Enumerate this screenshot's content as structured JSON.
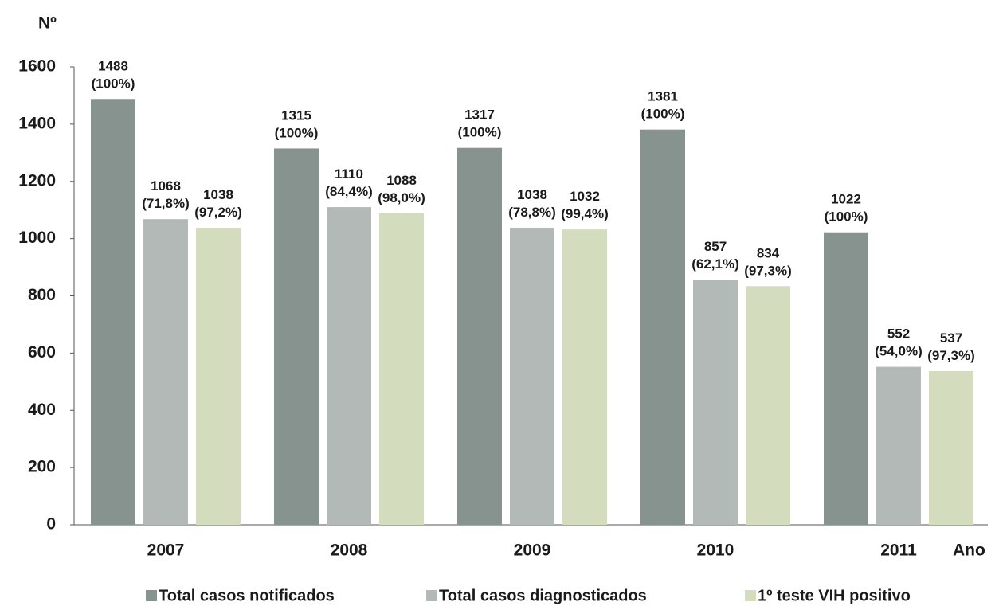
{
  "chart_data": {
    "type": "bar",
    "y_label": "Nº",
    "x_label": "Ano",
    "categories": [
      "2007",
      "2008",
      "2009",
      "2010",
      "2011"
    ],
    "series": [
      {
        "name": "Total casos notificados",
        "color": "#87938f",
        "values": [
          1488,
          1315,
          1317,
          1381,
          1022
        ],
        "value_labels": [
          "1488 (100%)",
          "1315 (100%)",
          "1317 (100%)",
          "1381 (100%)",
          "1022 (100%)"
        ]
      },
      {
        "name": "Total casos diagnosticados",
        "color": "#b3b9b6",
        "values": [
          1068,
          1110,
          1038,
          857,
          552
        ],
        "value_labels": [
          "1068 (71,8%)",
          "1110 (84,4%)",
          "1038 (78,8%)",
          "857 (62,1%)",
          "552 (54,0%)"
        ]
      },
      {
        "name": "1º teste VIH positivo",
        "color": "#d3dcbd",
        "values": [
          1038,
          1088,
          1032,
          834,
          537
        ],
        "value_labels": [
          "1038 (97,2%)",
          "1088 (98,0%)",
          "1032 (99,4%)",
          "834 (97,3%)",
          "537 (97,3%)"
        ]
      }
    ],
    "ylim": [
      0,
      1600
    ],
    "yticks": [
      0,
      200,
      400,
      600,
      800,
      1000,
      1200,
      1400,
      1600
    ],
    "grid": false
  }
}
